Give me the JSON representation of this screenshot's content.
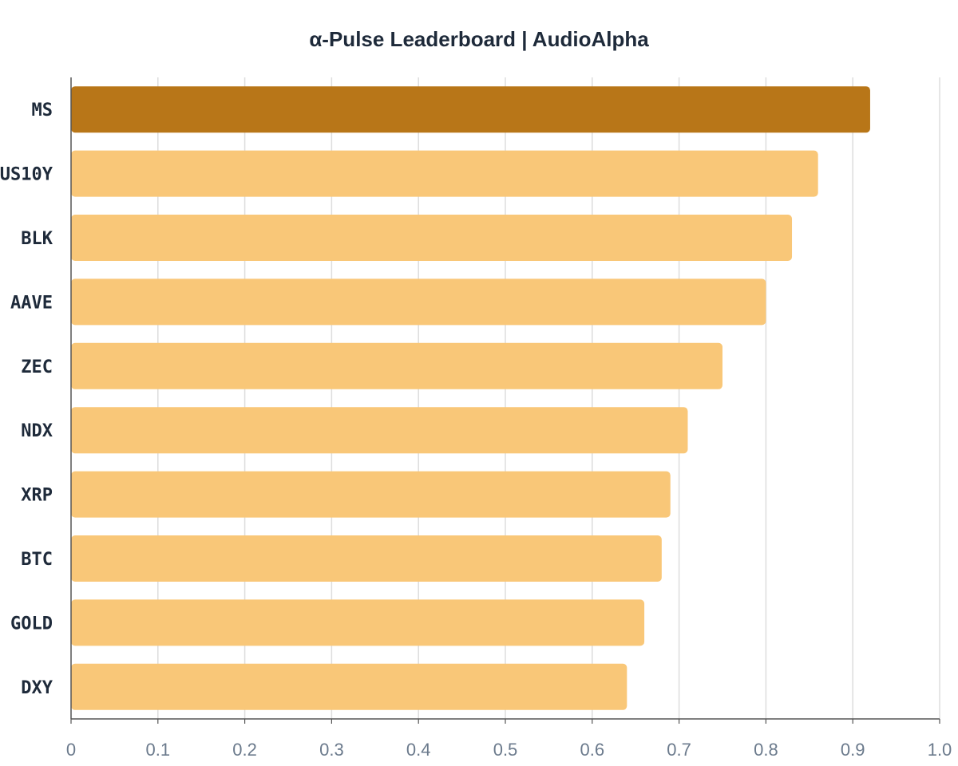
{
  "chart_data": {
    "type": "bar",
    "orientation": "horizontal",
    "title": "α-Pulse Leaderboard | AudioAlpha",
    "xlabel": "",
    "ylabel": "",
    "categories": [
      "MS",
      "US10Y",
      "BLK",
      "AAVE",
      "ZEC",
      "NDX",
      "XRP",
      "BTC",
      "GOLD",
      "DXY"
    ],
    "values": [
      0.92,
      0.86,
      0.83,
      0.8,
      0.75,
      0.71,
      0.69,
      0.68,
      0.66,
      0.64
    ],
    "xlim": [
      0,
      1.0
    ],
    "x_ticks": [
      "0",
      "0.1",
      "0.2",
      "0.3",
      "0.4",
      "0.5",
      "0.6",
      "0.7",
      "0.8",
      "0.9",
      "1.0"
    ],
    "grid": "vertical",
    "legend": "none",
    "highlight_category": "MS",
    "colors": {
      "highlight": "#b87618",
      "bar": "#f9c778",
      "grid": "#dddddd",
      "axis": "#555555",
      "title": "#1e2a3a",
      "category_label": "#1e2a3a",
      "tick_label": "#6b7a8c"
    }
  }
}
